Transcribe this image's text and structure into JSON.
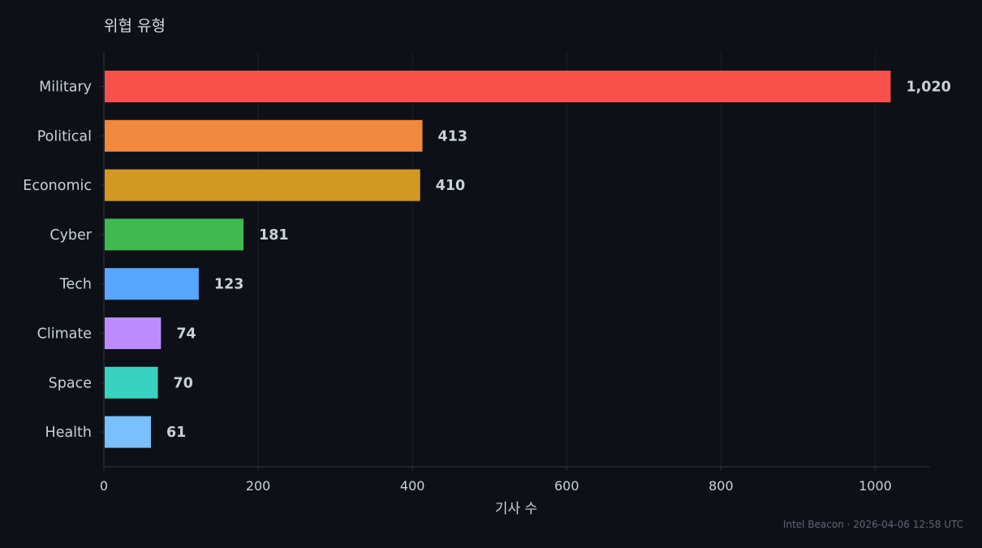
{
  "chart_data": {
    "type": "bar",
    "orientation": "horizontal",
    "title": "위협 유형",
    "xlabel": "기사 수",
    "ylabel": "",
    "categories": [
      "Military",
      "Political",
      "Economic",
      "Cyber",
      "Tech",
      "Climate",
      "Space",
      "Health"
    ],
    "values": [
      1020,
      413,
      410,
      181,
      123,
      74,
      70,
      61
    ],
    "value_labels": [
      "1,020",
      "413",
      "410",
      "181",
      "123",
      "74",
      "70",
      "61"
    ],
    "colors": [
      "#f8514c",
      "#f0883e",
      "#d29922",
      "#3fb950",
      "#58a6ff",
      "#bc8cff",
      "#39d2c0",
      "#79c0ff"
    ],
    "xlim": [
      0,
      1070
    ],
    "xticks": [
      0,
      200,
      400,
      600,
      800,
      1000
    ],
    "xtick_labels": [
      "0",
      "200",
      "400",
      "600",
      "800",
      "1000"
    ],
    "grid": "vertical",
    "legend": "none"
  },
  "footer": {
    "credit": "Intel Beacon · 2026-04-06 12:58 UTC"
  },
  "colors": {
    "background": "#0d1017",
    "grid": "#1b2029",
    "axis": "#2b313a",
    "text": "#c9d1d9",
    "muted": "#5f6670"
  }
}
